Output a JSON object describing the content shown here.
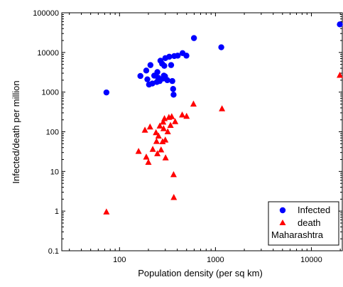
{
  "chart_data": {
    "type": "scatter",
    "title": "",
    "xlabel": "Population density (per sq km)",
    "ylabel": "Infected/death per million",
    "x_scale": "log",
    "y_scale": "log",
    "xlim": [
      25,
      21000
    ],
    "ylim": [
      0.1,
      100000
    ],
    "x_ticks": [
      {
        "value": 100,
        "label": "100"
      },
      {
        "value": 1000,
        "label": "1000"
      },
      {
        "value": 10000,
        "label": "10000"
      }
    ],
    "y_ticks": [
      {
        "value": 0.1,
        "label": "0.1"
      },
      {
        "value": 1,
        "label": "1"
      },
      {
        "value": 10,
        "label": "10"
      },
      {
        "value": 100,
        "label": "100"
      },
      {
        "value": 1000,
        "label": "1000"
      },
      {
        "value": 10000,
        "label": "10000"
      },
      {
        "value": 100000,
        "label": "100000"
      }
    ],
    "grid": false,
    "legend": {
      "position": "bottom-right",
      "note": "Maharashtra"
    },
    "series": [
      {
        "name": "Infected",
        "marker": "circle",
        "color": "#0000ff",
        "points": [
          [
            73,
            980
          ],
          [
            165,
            2550
          ],
          [
            190,
            3500
          ],
          [
            195,
            2100
          ],
          [
            203,
            1550
          ],
          [
            210,
            4800
          ],
          [
            220,
            1650
          ],
          [
            230,
            2600
          ],
          [
            245,
            1800
          ],
          [
            248,
            3200
          ],
          [
            253,
            2300
          ],
          [
            262,
            1900
          ],
          [
            267,
            6200
          ],
          [
            278,
            5200
          ],
          [
            284,
            2200
          ],
          [
            290,
            2600
          ],
          [
            293,
            4600
          ],
          [
            298,
            2500
          ],
          [
            300,
            7200
          ],
          [
            315,
            2000
          ],
          [
            330,
            7800
          ],
          [
            345,
            4800
          ],
          [
            355,
            1900
          ],
          [
            362,
            1200
          ],
          [
            366,
            860
          ],
          [
            372,
            8100
          ],
          [
            404,
            8300
          ],
          [
            454,
            9600
          ],
          [
            498,
            8300
          ],
          [
            597,
            23000
          ],
          [
            1150,
            13500
          ],
          [
            19800,
            51000
          ]
        ]
      },
      {
        "name": "death",
        "marker": "triangle",
        "color": "#ff0000",
        "points": [
          [
            73,
            0.95
          ],
          [
            158,
            32
          ],
          [
            184,
            110
          ],
          [
            190,
            23
          ],
          [
            200,
            17
          ],
          [
            208,
            132
          ],
          [
            222,
            36
          ],
          [
            240,
            95
          ],
          [
            243,
            57
          ],
          [
            248,
            28
          ],
          [
            255,
            78
          ],
          [
            263,
            140
          ],
          [
            271,
            35
          ],
          [
            281,
            56
          ],
          [
            285,
            175
          ],
          [
            288,
            120
          ],
          [
            294,
            215
          ],
          [
            300,
            62
          ],
          [
            302,
            22
          ],
          [
            318,
            100
          ],
          [
            327,
            230
          ],
          [
            340,
            145
          ],
          [
            350,
            240
          ],
          [
            366,
            8.3
          ],
          [
            368,
            2.2
          ],
          [
            380,
            180
          ],
          [
            450,
            265
          ],
          [
            500,
            245
          ],
          [
            590,
            500
          ],
          [
            1170,
            380
          ],
          [
            19800,
            2650
          ]
        ]
      }
    ]
  }
}
